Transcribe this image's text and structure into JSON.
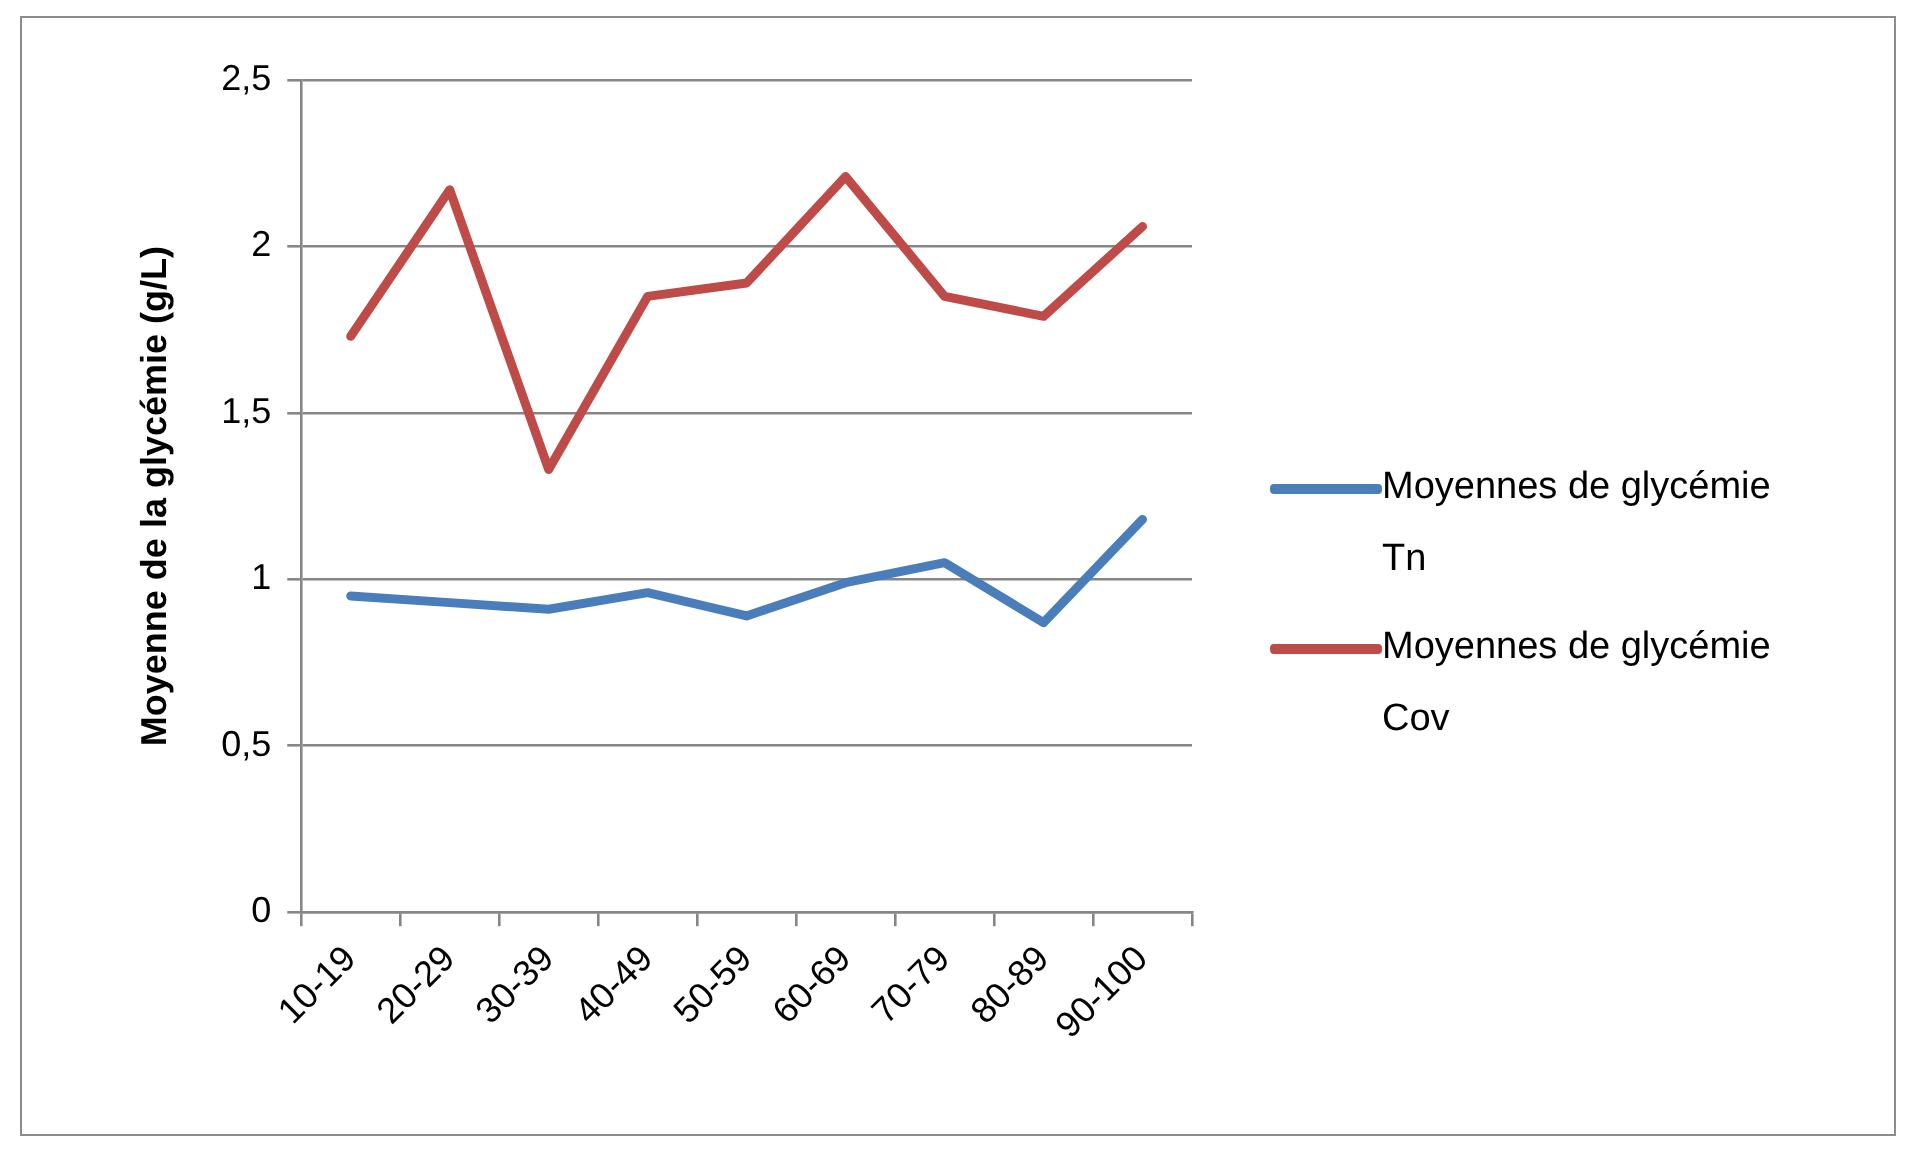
{
  "chart_data": {
    "type": "line",
    "ylabel": "Moyenne de la glycémie (g/L)",
    "categories": [
      "10-19",
      "20-29",
      "30-39",
      "40-49",
      "50-59",
      "60-69",
      "70-79",
      "80-89",
      "90-100"
    ],
    "series": [
      {
        "name": "Moyennes de glycémie Tn",
        "color": "#4a7ebb",
        "values": [
          0.95,
          0.93,
          0.91,
          0.96,
          0.89,
          0.99,
          1.05,
          0.87,
          1.18
        ]
      },
      {
        "name": "Moyennes de glycémie Cov",
        "color": "#be4b48",
        "values": [
          1.73,
          2.17,
          1.33,
          1.85,
          1.89,
          2.21,
          1.85,
          1.79,
          2.06
        ]
      }
    ],
    "ylim": [
      0,
      2.5
    ],
    "yticks": [
      0,
      {
        "value": 0.5,
        "label": "0,5"
      },
      1,
      {
        "value": 1.5,
        "label": "1,5"
      },
      2,
      {
        "value": 2.5,
        "label": "2,5"
      }
    ],
    "grid": "y",
    "legend": "right",
    "marker": "none",
    "line_style": "solid"
  }
}
